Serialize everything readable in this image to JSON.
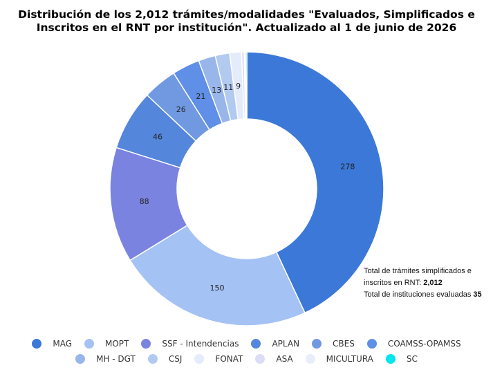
{
  "chart_data": {
    "type": "pie",
    "title_lines": [
      "Distribución de los 2,012 trámites/modalidades \"Evaluados, Simplificados e",
      "Inscritos en el RNT por institución\".  Actualizado al 1 de junio de 2026"
    ],
    "slices": [
      {
        "label": "MAG",
        "value": 278,
        "color": "#3b78d8",
        "show_label": true
      },
      {
        "label": "MOPT",
        "value": 150,
        "color": "#a4c2f4",
        "show_label": true
      },
      {
        "label": "SSF - Intendencias",
        "value": 88,
        "color": "#7b83e0",
        "show_label": true
      },
      {
        "label": "APLAN",
        "value": 46,
        "color": "#5487dc",
        "show_label": true
      },
      {
        "label": "CBES",
        "value": 26,
        "color": "#7199e2",
        "show_label": true
      },
      {
        "label": "COAMSS-OPAMSS",
        "value": 21,
        "color": "#5f8fe6",
        "show_label": true
      },
      {
        "label": "MH - DGT",
        "value": 13,
        "color": "#99b6ea",
        "show_label": true
      },
      {
        "label": "CSJ",
        "value": 11,
        "color": "#b3caf0",
        "show_label": true
      },
      {
        "label": "FONAT",
        "value": 9,
        "color": "#e4ebfb",
        "show_label": true
      },
      {
        "label": "ASA",
        "value": 2,
        "color": "#dcdcf6",
        "show_label": false
      },
      {
        "label": "MICULTURA",
        "value": 1,
        "color": "#e8eefc",
        "show_label": false
      },
      {
        "label": "SC",
        "value": 1,
        "color": "#00e5ee",
        "show_label": false
      }
    ],
    "legend_placement": "bottom",
    "donut": true
  },
  "note": {
    "line1": "Total de trámites simplificados e",
    "line2_prefix": " inscritos en RNT: ",
    "line2_value": "2,012",
    "line3_prefix": "Total de instituciones evaluadas ",
    "line3_value": "35"
  }
}
